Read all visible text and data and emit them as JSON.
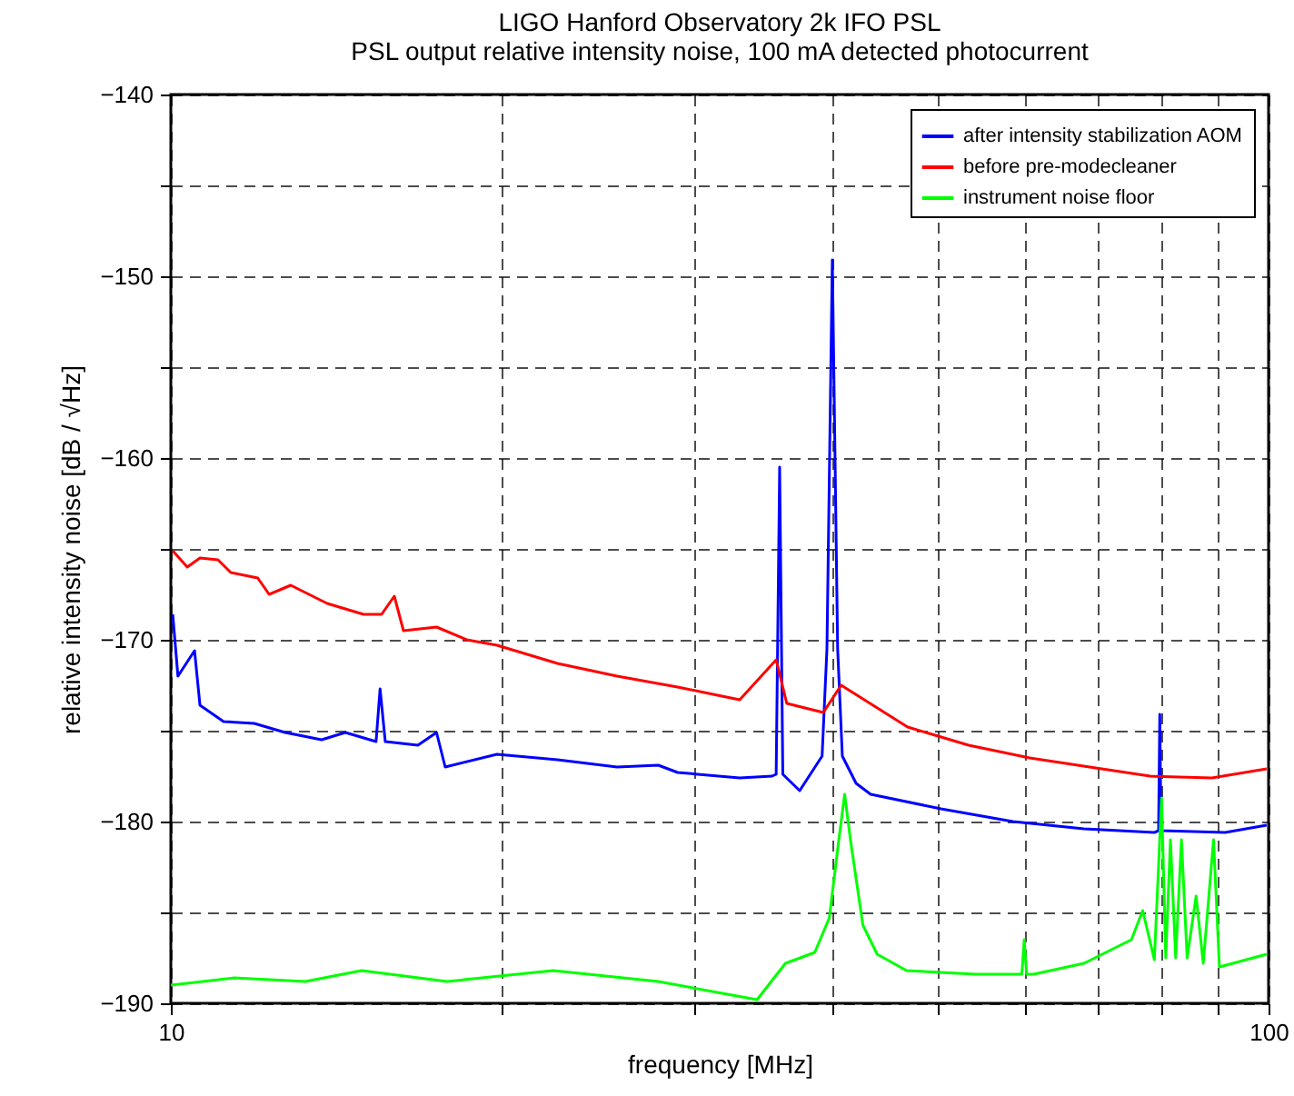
{
  "chart_data": {
    "type": "line",
    "title": "LIGO Hanford Observatory 2k IFO PSL",
    "subtitle": "PSL output relative intensity noise, 100 mA detected photocurrent",
    "xlabel": "frequency [MHz]",
    "ylabel": "relative intensity noise [dB / √Hz]",
    "log": "x",
    "grid": true,
    "legend": "top right",
    "xlim": [
      10,
      100
    ],
    "xticks": [
      10,
      {
        "value": 20,
        "label": null
      },
      {
        "value": 30,
        "label": null
      },
      {
        "value": 40,
        "label": null
      },
      {
        "value": 50,
        "label": null
      },
      {
        "value": 60,
        "label": null
      },
      {
        "value": 70,
        "label": null
      },
      {
        "value": 80,
        "label": null
      },
      {
        "value": 90,
        "label": null
      },
      100
    ],
    "ylim": [
      -190,
      -140
    ],
    "yticks": [
      -190,
      {
        "value": -185,
        "label": null
      },
      -180,
      {
        "value": -175,
        "label": null
      },
      -170,
      {
        "value": -165,
        "label": null
      },
      -160,
      {
        "value": -155,
        "label": null
      },
      -150,
      {
        "value": -145,
        "label": null
      },
      -140
    ],
    "series": [
      {
        "name": "after intensity stabilization AOM",
        "color": "#0000ff",
        "x": [
          10.04,
          10.15,
          10.51,
          10.63,
          11.17,
          11.91,
          12.71,
          13.72,
          14.42,
          15.38,
          15.51,
          15.68,
          16.79,
          17.46,
          17.78,
          19.82,
          22.5,
          25.5,
          27.8,
          28.95,
          32.98,
          35.3,
          35.6,
          35.86,
          36.1,
          37.4,
          39.2,
          39.6,
          40.05,
          40.5,
          40.9,
          42.1,
          43.4,
          50.3,
          58.5,
          67.9,
          78.7,
          79.4,
          79.6,
          79.8,
          91.3,
          99.6
        ],
        "values": [
          -168.6,
          -172.0,
          -170.6,
          -173.6,
          -174.5,
          -174.6,
          -175.1,
          -175.5,
          -175.1,
          -175.6,
          -172.7,
          -175.6,
          -175.8,
          -175.1,
          -177.0,
          -176.3,
          -176.6,
          -177.0,
          -176.9,
          -177.3,
          -177.6,
          -177.5,
          -177.4,
          -160.5,
          -177.4,
          -178.3,
          -176.4,
          -170.5,
          -149.1,
          -170.5,
          -176.4,
          -177.9,
          -178.5,
          -179.3,
          -180.0,
          -180.4,
          -180.6,
          -180.5,
          -174.1,
          -180.5,
          -180.6,
          -180.2
        ]
      },
      {
        "name": "before pre-modecleaner",
        "color": "#ff0000",
        "x": [
          10.04,
          10.35,
          10.63,
          11.04,
          11.34,
          12.0,
          12.29,
          12.86,
          13.88,
          14.98,
          15.56,
          15.98,
          16.29,
          17.46,
          18.6,
          19.82,
          22.5,
          25.5,
          28.95,
          32.98,
          35.6,
          36.4,
          39.3,
          40.8,
          46.9,
          53.3,
          60.6,
          68.7,
          78.0,
          88.8,
          99.6
        ],
        "values": [
          -165.1,
          -166.0,
          -165.5,
          -165.6,
          -166.3,
          -166.6,
          -167.5,
          -167.0,
          -168.0,
          -168.6,
          -168.6,
          -167.6,
          -169.5,
          -169.3,
          -170.0,
          -170.3,
          -171.3,
          -172.0,
          -172.6,
          -173.3,
          -171.1,
          -173.5,
          -174.0,
          -172.5,
          -174.8,
          -175.8,
          -176.5,
          -177.0,
          -177.5,
          -177.6,
          -177.1
        ]
      },
      {
        "name": "instrument noise floor",
        "color": "#00ff00",
        "x": [
          10.0,
          11.42,
          13.26,
          14.92,
          17.85,
          22.3,
          27.8,
          34.2,
          36.3,
          38.6,
          39.8,
          40.6,
          41.1,
          41.6,
          42.7,
          44.0,
          46.8,
          54.1,
          59.6,
          59.9,
          60.2,
          61.1,
          67.9,
          75.0,
          76.8,
          78.7,
          79.9,
          80.6,
          81.4,
          82.3,
          83.3,
          84.3,
          85.9,
          87.2,
          89.1,
          90.2,
          99.6
        ],
        "values": [
          -189.0,
          -188.6,
          -188.8,
          -188.2,
          -188.8,
          -188.2,
          -188.8,
          -189.8,
          -187.8,
          -187.2,
          -185.3,
          -181.0,
          -178.5,
          -181.0,
          -185.7,
          -187.3,
          -188.2,
          -188.4,
          -188.4,
          -186.5,
          -188.4,
          -188.4,
          -187.8,
          -186.5,
          -184.9,
          -187.6,
          -178.7,
          -187.5,
          -181.0,
          -187.5,
          -181.0,
          -187.5,
          -184.1,
          -187.8,
          -181.0,
          -188.0,
          -187.3
        ]
      }
    ]
  }
}
